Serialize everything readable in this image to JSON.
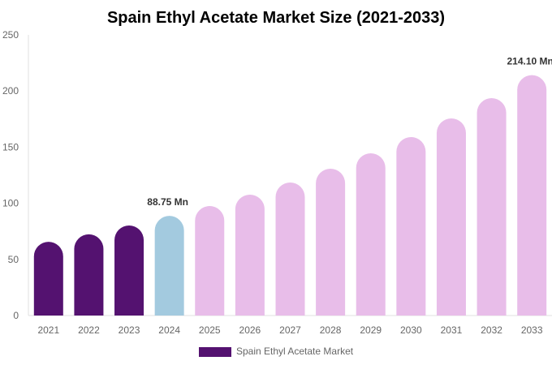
{
  "chart_data": {
    "type": "bar",
    "title": "Spain Ethyl Acetate Market Size (2021-2033)",
    "xlabel": "",
    "ylabel": "",
    "ylim": [
      0,
      250
    ],
    "yticks": [
      0,
      50,
      100,
      150,
      200,
      250
    ],
    "grid": false,
    "legend_placement": "bottom",
    "categories": [
      "2021",
      "2022",
      "2023",
      "2024",
      "2025",
      "2026",
      "2027",
      "2028",
      "2029",
      "2030",
      "2031",
      "2032",
      "2033"
    ],
    "series": [
      {
        "name": "Spain Ethyl Acetate Market",
        "values": [
          65.7,
          72.3,
          80.2,
          88.75,
          97.5,
          107.7,
          118.5,
          130.8,
          144.5,
          159.0,
          175.6,
          193.6,
          214.1
        ]
      }
    ],
    "bar_colors": {
      "historical": "#541270",
      "base_year": "#A3CADF",
      "forecast": "#E8BDE9"
    },
    "bar_color_groups": [
      "historical",
      "historical",
      "historical",
      "base_year",
      "forecast",
      "forecast",
      "forecast",
      "forecast",
      "forecast",
      "forecast",
      "forecast",
      "forecast",
      "forecast"
    ],
    "data_labels": [
      {
        "index": 3,
        "text": "88.75 Mn"
      },
      {
        "index": 12,
        "text": "214.10 Mn"
      }
    ],
    "legend_color": "#541270"
  }
}
